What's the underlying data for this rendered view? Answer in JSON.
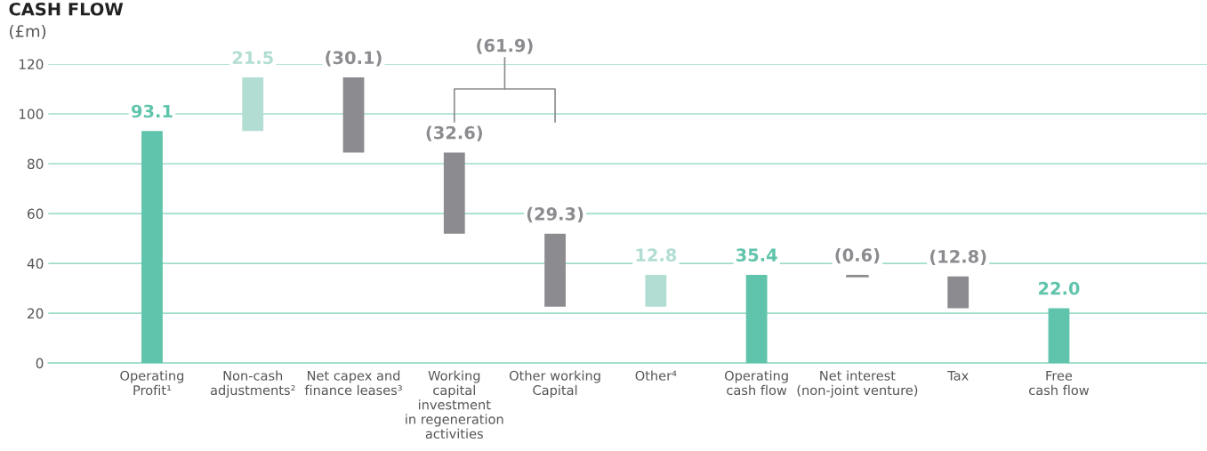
{
  "chart_data": {
    "type": "bar",
    "title": "CASH FLOW",
    "ylabel": "(£m)",
    "categories": [
      "Operating\nProfit¹",
      "Non-cash\nadjustments²",
      "Net capex and\nfinance leases³",
      "Working\ncapital\ninvestment\nin regeneration\nactivities",
      "Other working\nCapital",
      "Other⁴",
      "Operating\ncash flow",
      "Net interest\n(non-joint venture)",
      "Tax",
      "Free\ncash flow"
    ],
    "values": [
      93.1,
      21.5,
      -30.1,
      -32.6,
      -29.3,
      12.8,
      35.4,
      -0.6,
      -12.8,
      22.0
    ],
    "base": [
      0,
      93.1,
      114.6,
      84.5,
      51.9,
      22.6,
      0,
      35.4,
      34.8,
      0
    ],
    "colors": [
      "#5fc4ab",
      "#b2ddd3",
      "#8c8c90",
      "#8c8c90",
      "#8c8c90",
      "#b2ddd3",
      "#5fc4ab",
      "#8c8c90",
      "#8c8c90",
      "#5fc4ab"
    ],
    "value_labels": [
      "93.1",
      "21.5",
      "(30.1)",
      "(32.6)",
      "(29.3)",
      "12.8",
      "35.4",
      "(0.6)",
      "(12.8)",
      "22.0"
    ],
    "annotations": [
      "(61.9)"
    ],
    "ylim": [
      0,
      120
    ],
    "yticks": [
      0,
      20,
      40,
      60,
      80,
      100,
      120
    ],
    "grid": "y",
    "legend": false
  }
}
